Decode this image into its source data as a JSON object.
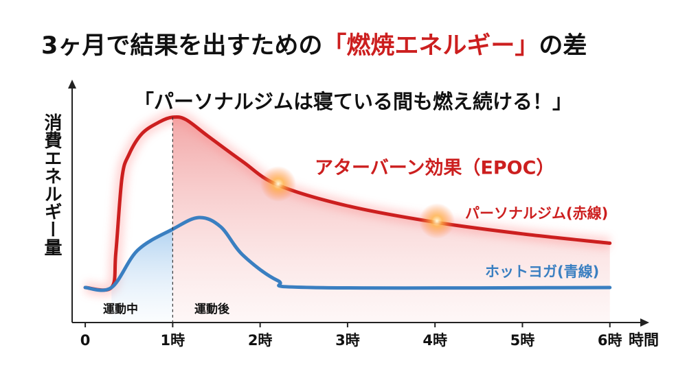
{
  "chart_data": {
    "type": "line",
    "title_parts": [
      "3ヶ月で結果を出すための",
      "「燃焼エネルギー」",
      "の差"
    ],
    "subtitle": "「パーソナルジムは寝ている間も燃え続ける！」",
    "annotation": "アターバーン効果（EPOC）",
    "y_label": "消費エネルギー量",
    "x_label": "時間",
    "phases": [
      "運動中",
      "運動後"
    ],
    "xlim": [
      -0.15,
      6.45
    ],
    "ylim": [
      0,
      100
    ],
    "xticks": [
      0,
      {
        "value": 1,
        "label": "1時"
      },
      {
        "value": 2,
        "label": "2時"
      },
      {
        "value": 3,
        "label": "3時"
      },
      {
        "value": 4,
        "label": "4時"
      },
      {
        "value": 5,
        "label": "5時"
      },
      {
        "value": 6,
        "label": "6時"
      }
    ],
    "series": [
      {
        "name": "パーソナルジム(赤線)",
        "color": "#cc1f1f",
        "x": [
          0,
          0.3,
          0.35,
          0.42,
          0.5,
          0.65,
          0.85,
          1.0,
          1.15,
          1.4,
          1.8,
          2.2,
          3.0,
          4.0,
          5.0,
          6.0
        ],
        "values": [
          15,
          15,
          30,
          62,
          72,
          81,
          86,
          88,
          87,
          80,
          69,
          59,
          50,
          43,
          38,
          34
        ]
      },
      {
        "name": "ホットヨガ(青線)",
        "color": "#3a7fc1",
        "x": [
          0,
          0.3,
          0.6,
          1.0,
          1.3,
          1.55,
          1.8,
          2.2,
          2.6,
          6.0
        ],
        "values": [
          15,
          15,
          31,
          40,
          45,
          41,
          29,
          18,
          15,
          15
        ]
      }
    ]
  }
}
